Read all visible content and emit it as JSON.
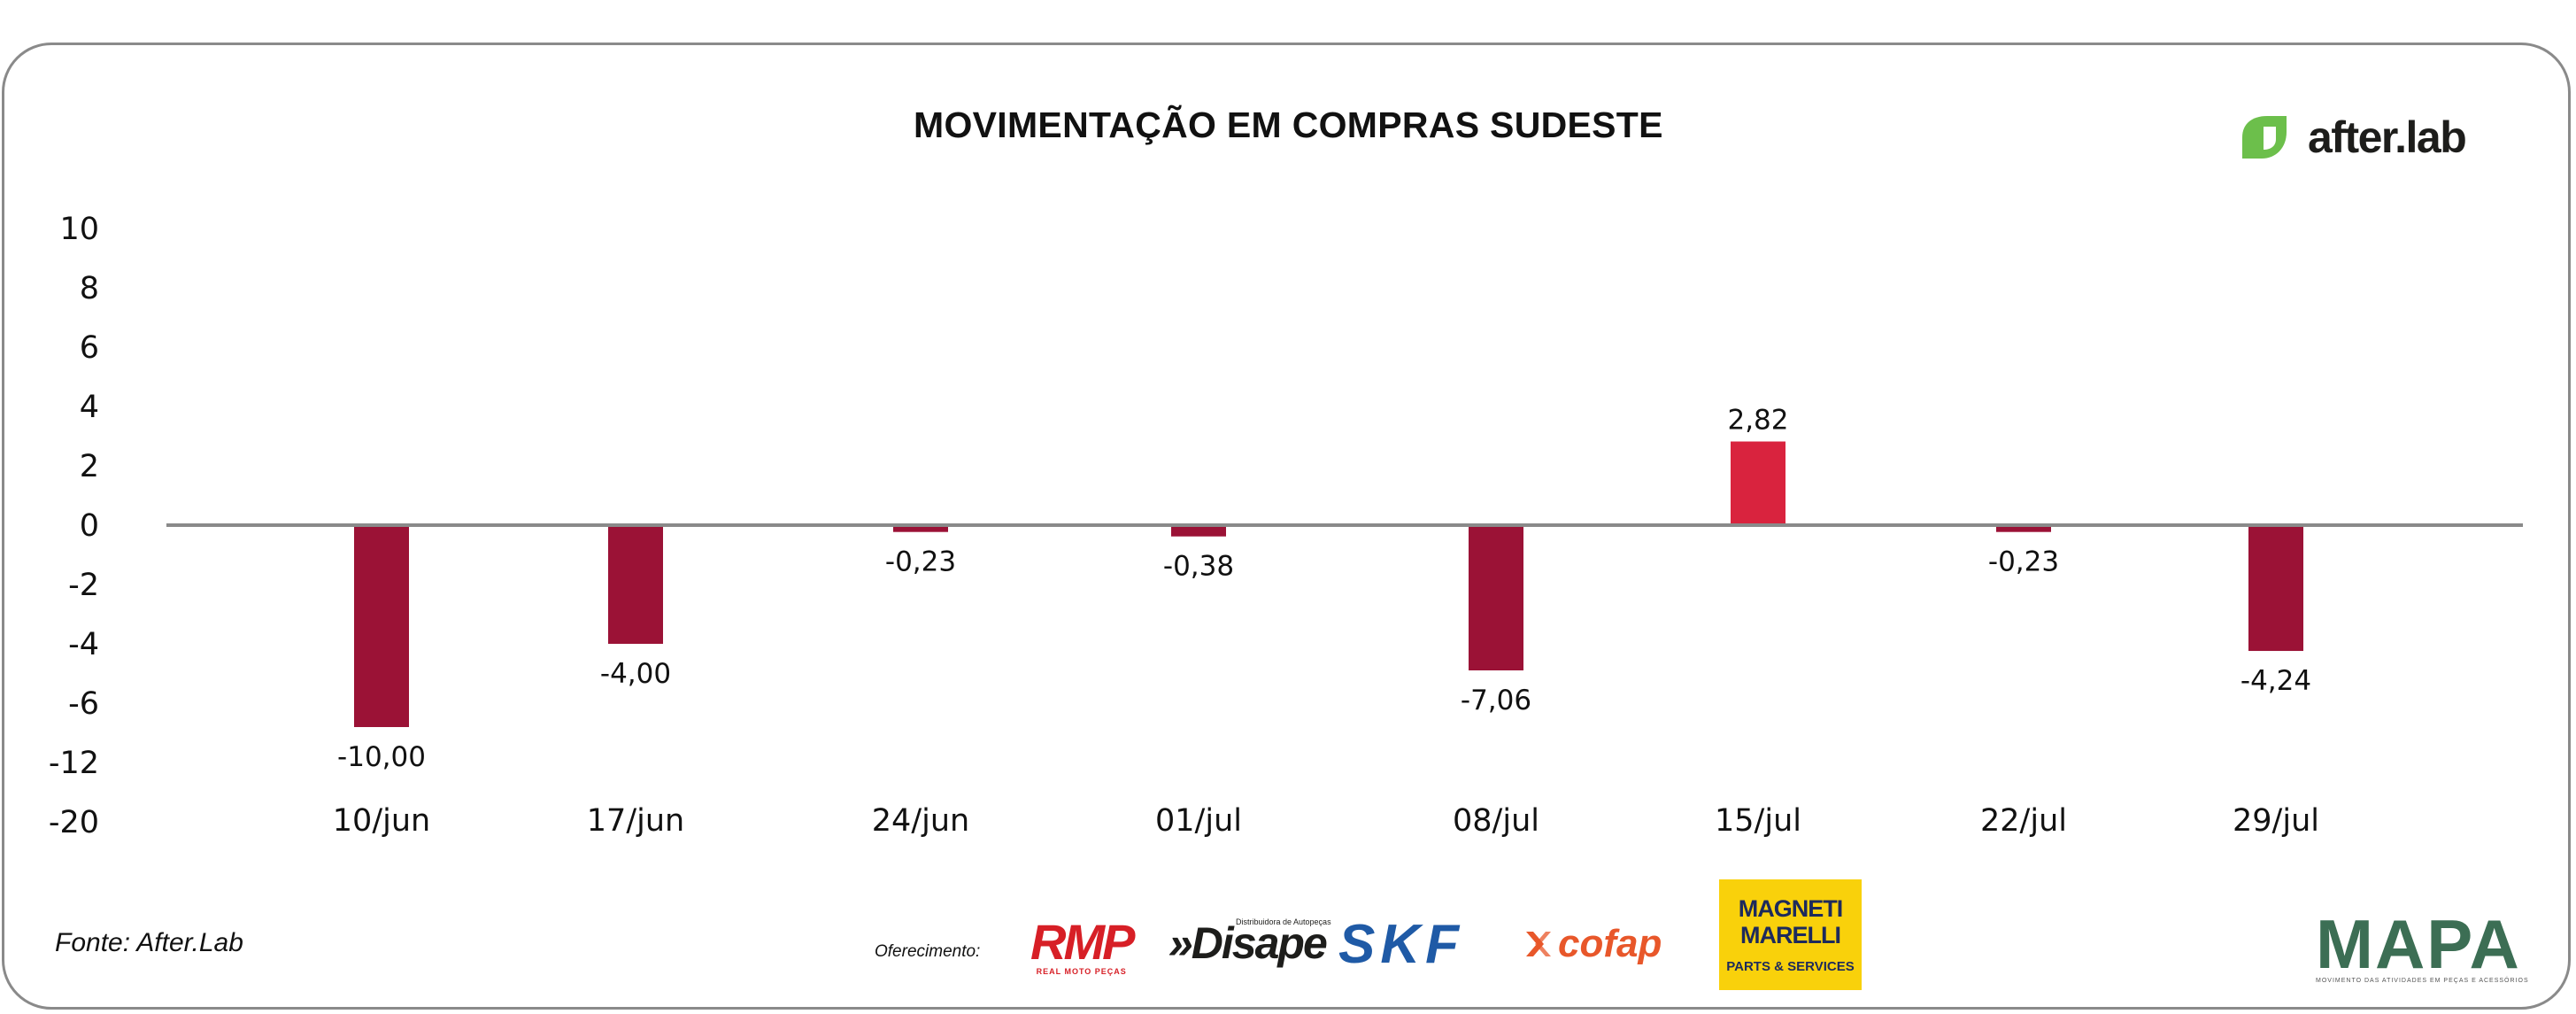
{
  "colors": {
    "bar_negative": "#9b1236",
    "bar_positive": "#d9233e",
    "zero_line": "#8a8a8a",
    "brand_green": "#6cbf4b"
  },
  "brand": {
    "name": "after.lab"
  },
  "footer": {
    "source": "Fonte: After.Lab",
    "offer_label": "Oferecimento:"
  },
  "sponsors": {
    "rmp": {
      "main": "RMP",
      "sub": "REAL MOTO PEÇAS"
    },
    "disape": {
      "main": "»Disape",
      "sub": "Distribuidora de Autopeças"
    },
    "skf": {
      "main": "SKF"
    },
    "cofap": {
      "main": "cofap"
    },
    "magneti": {
      "main": "MAGNETI MARELLI",
      "sub": "PARTS & SERVICES"
    },
    "mapa": {
      "main": "MAPA",
      "sub": "MOVIMENTO DAS ATIVIDADES EM PEÇAS E ACESSÓRIOS"
    }
  },
  "chart_data": {
    "type": "bar",
    "title": "MOVIMENTAÇÃO EM COMPRAS SUDESTE",
    "xlabel": "",
    "ylabel": "",
    "categories": [
      "10/jun",
      "17/jun",
      "24/jun",
      "01/jul",
      "08/jul",
      "15/jul",
      "22/jul",
      "29/jul"
    ],
    "values": [
      -10.0,
      -4.0,
      -0.23,
      -0.38,
      -7.06,
      2.82,
      -0.23,
      -4.24
    ],
    "value_labels": [
      "-10,00",
      "-4,00",
      "-0,23",
      "-0,38",
      "-7,06",
      "2,82",
      "-0,23",
      "-4,24"
    ],
    "y_tick_labels": [
      "10",
      "8",
      "6",
      "4",
      "2",
      "0",
      "-2",
      "-4",
      "-6",
      "-12",
      "-20"
    ],
    "y_tick_values": [
      10,
      8,
      6,
      4,
      2,
      0,
      -2,
      -4,
      -6,
      -12,
      -20
    ],
    "ylim": [
      -20,
      10
    ],
    "grid": false,
    "legend": "none"
  }
}
